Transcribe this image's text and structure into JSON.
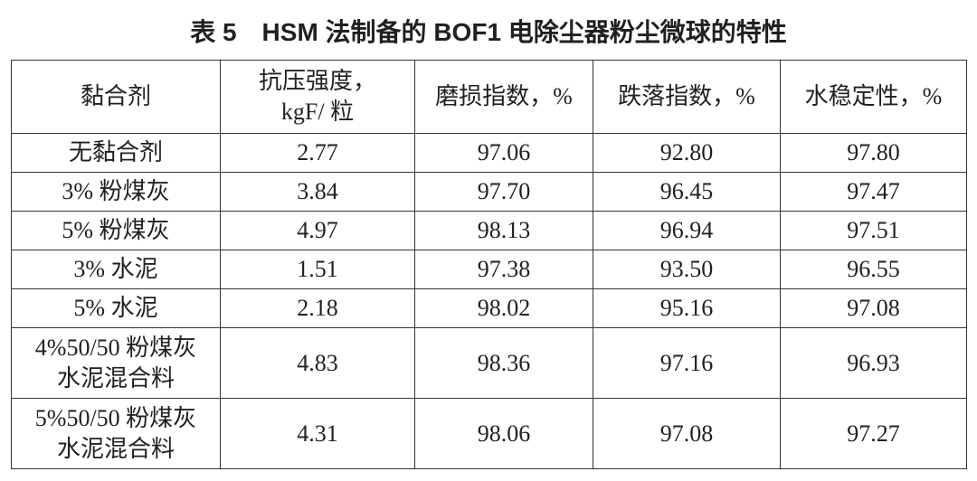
{
  "title": "表 5　HSM 法制备的 BOF1 电除尘器粉尘微球的特性",
  "table": {
    "header": [
      "黏合剂",
      "抗压强度，kgF/ 粒",
      "磨损指数，%",
      "跌落指数，%",
      "水稳定性，%"
    ],
    "rows": [
      [
        "无黏合剂",
        "2.77",
        "97.06",
        "92.80",
        "97.80"
      ],
      [
        "3% 粉煤灰",
        "3.84",
        "97.70",
        "96.45",
        "97.47"
      ],
      [
        "5% 粉煤灰",
        "4.97",
        "98.13",
        "96.94",
        "97.51"
      ],
      [
        "3% 水泥",
        "1.51",
        "97.38",
        "93.50",
        "96.55"
      ],
      [
        "5% 水泥",
        "2.18",
        "98.02",
        "95.16",
        "97.08"
      ],
      [
        "4%50/50 粉煤灰水泥混合料",
        "4.83",
        "98.36",
        "97.16",
        "96.93"
      ],
      [
        "5%50/50 粉煤灰水泥混合料",
        "4.31",
        "98.06",
        "97.08",
        "97.27"
      ]
    ]
  }
}
